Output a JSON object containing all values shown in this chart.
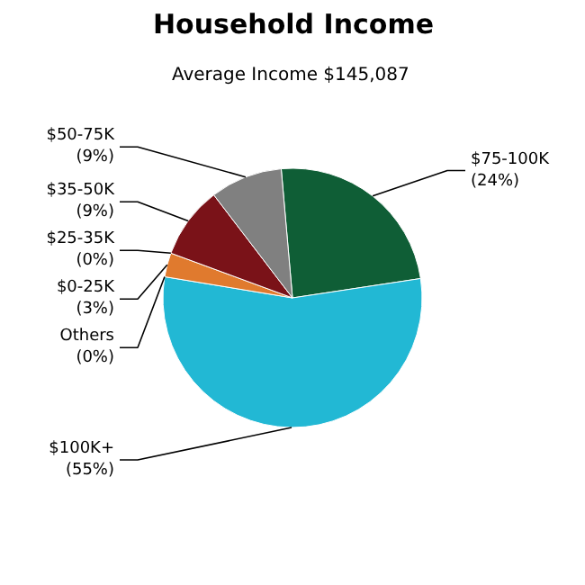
{
  "chart_data": {
    "type": "pie",
    "title": "Household Income",
    "subtitle": "Average Income  $145,087",
    "categories": [
      "$75-100K",
      "$100K+",
      "Others",
      "$0-25K",
      "$25-35K",
      "$35-50K",
      "$50-75K"
    ],
    "values": [
      24,
      55,
      0,
      3,
      0,
      9,
      9
    ],
    "value_labels": [
      "(24%)",
      "(55%)",
      "(0%)",
      "(3%)",
      "(0%)",
      "(9%)",
      "(9%)"
    ],
    "colors": [
      "#0f5e36",
      "#22b8d4",
      "#3a6fb0",
      "#e07a2e",
      "#c0c0c0",
      "#7a1218",
      "#808080"
    ]
  }
}
